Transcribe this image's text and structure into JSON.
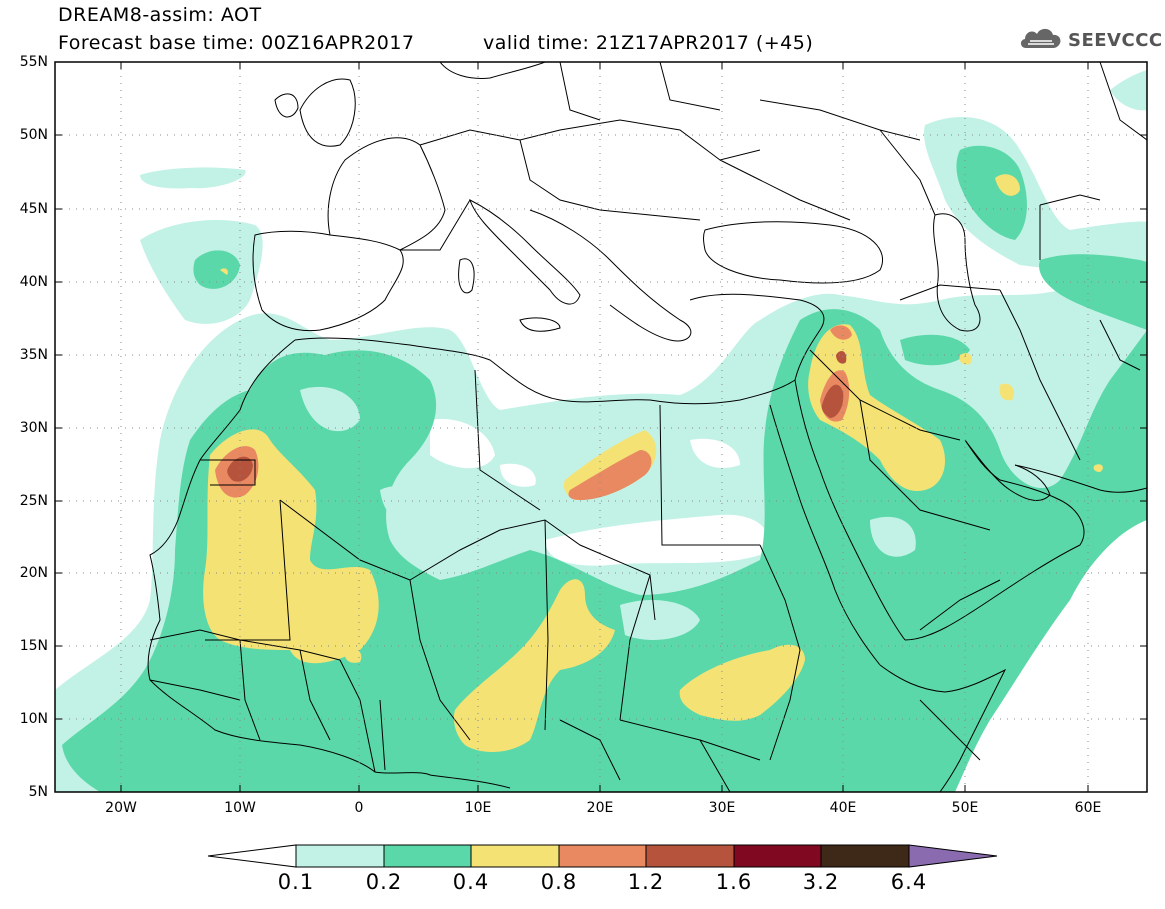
{
  "header": {
    "title": "DREAM8-assim: AOT",
    "base_time": "Forecast base time: 00Z16APR2017",
    "valid_time": "valid time: 21Z17APR2017 (+45)",
    "logo_text": "SEEVCCC",
    "logo_icon": "cloud-icon"
  },
  "map": {
    "lat_labels": [
      "55N",
      "50N",
      "45N",
      "40N",
      "35N",
      "30N",
      "25N",
      "20N",
      "15N",
      "10N",
      "5N"
    ],
    "lon_labels": [
      "20W",
      "10W",
      "0",
      "10E",
      "20E",
      "30E",
      "40E",
      "50E",
      "60E"
    ],
    "colors": {
      "c01": "#c2f2e6",
      "c02": "#5bd8a9",
      "c04": "#f5e275",
      "c08": "#e98961",
      "c12": "#b5533c",
      "c16": "#800820",
      "c32": "#3e2818",
      "c64": "#8a6bb0"
    }
  },
  "colorbar": {
    "labels": [
      "0.1",
      "0.2",
      "0.4",
      "0.8",
      "1.2",
      "1.6",
      "3.2",
      "6.4"
    ],
    "colors": [
      "#c2f2e6",
      "#5bd8a9",
      "#f5e275",
      "#e98961",
      "#b5533c",
      "#800820",
      "#3e2818"
    ],
    "under_color": "#ffffff",
    "over_color": "#8a6bb0"
  }
}
